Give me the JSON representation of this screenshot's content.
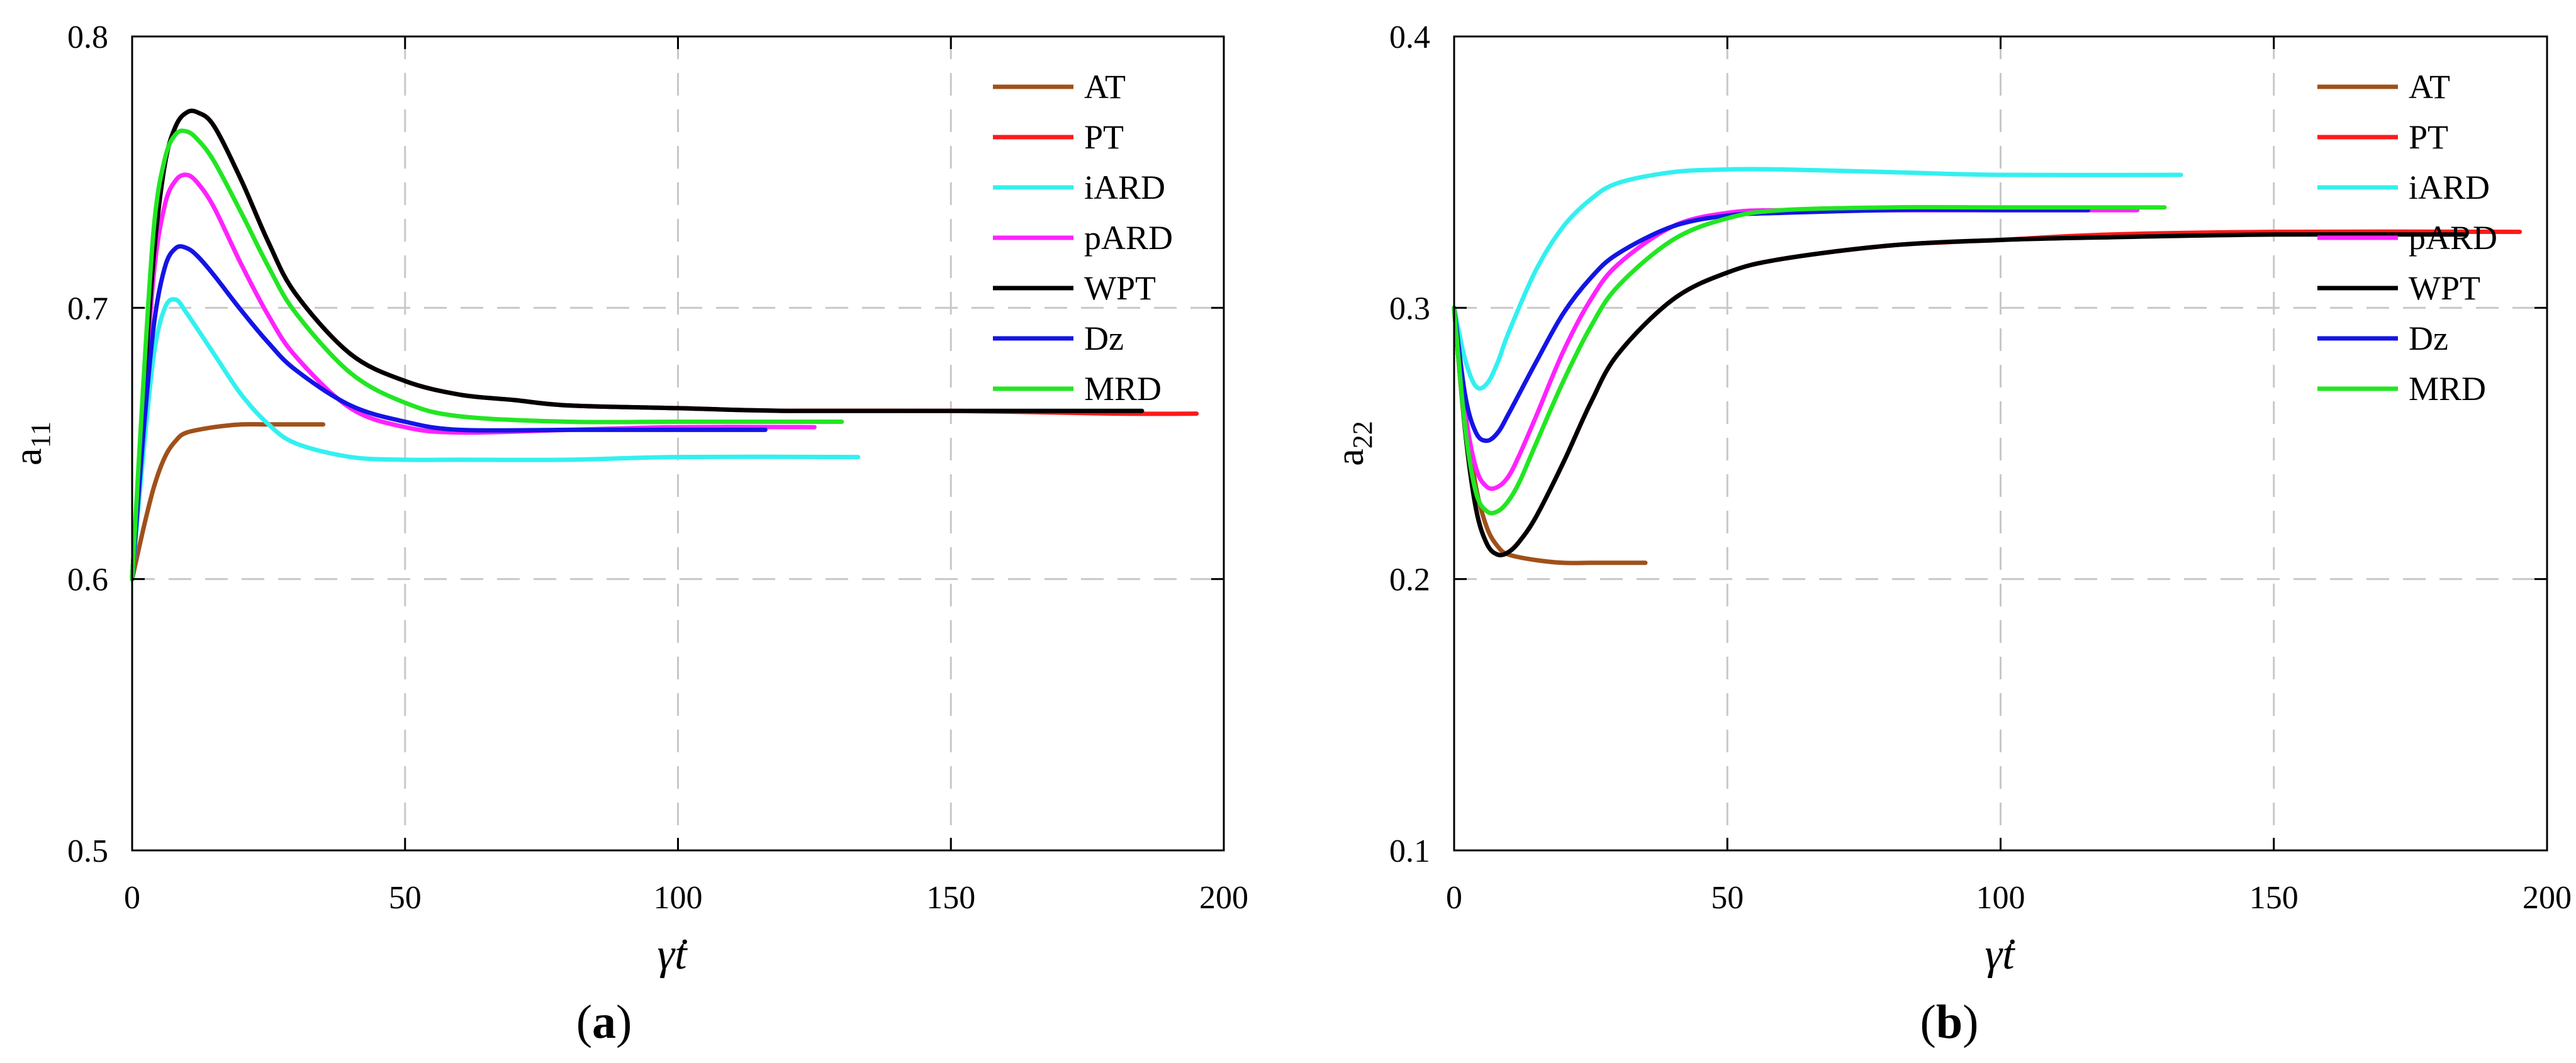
{
  "colors": {
    "AT": "#a0501a",
    "PT": "#ff1a1a",
    "iARD": "#33f0f0",
    "pARD": "#ff22ff",
    "WPT": "#000000",
    "Dz": "#1414e6",
    "MRD": "#22e622"
  },
  "chart_data": [
    {
      "type": "line",
      "panel": "a",
      "panel_label": [
        "(",
        "a",
        ")"
      ],
      "xlabel": "γ̇t",
      "ylabel": "a",
      "ylabel_sub": "11",
      "xlim": [
        0,
        200
      ],
      "ylim": [
        0.5,
        0.8
      ],
      "xticks": [
        0,
        50,
        100,
        150,
        200
      ],
      "yticks": [
        0.5,
        0.6,
        0.7,
        0.8
      ],
      "xtick_labels": [
        "0",
        "50",
        "100",
        "150",
        "200"
      ],
      "ytick_labels": [
        "0.5",
        "0.6",
        "0.7",
        "0.8"
      ],
      "grid": true,
      "legend_position": "top-right",
      "series": [
        {
          "name": "AT",
          "x": [
            0,
            2,
            4,
            6,
            8,
            10,
            15,
            20,
            25,
            30,
            35
          ],
          "y": [
            0.6,
            0.618,
            0.634,
            0.645,
            0.651,
            0.654,
            0.656,
            0.657,
            0.657,
            0.657,
            0.657
          ]
        },
        {
          "name": "PT",
          "x": [
            0,
            2,
            4,
            6,
            8,
            10,
            12,
            15,
            20,
            25,
            30,
            40,
            50,
            60,
            70,
            80,
            100,
            120,
            150,
            180,
            195
          ],
          "y": [
            0.6,
            0.665,
            0.72,
            0.753,
            0.767,
            0.772,
            0.772,
            0.767,
            0.747,
            0.724,
            0.705,
            0.683,
            0.673,
            0.668,
            0.666,
            0.664,
            0.663,
            0.662,
            0.662,
            0.661,
            0.661
          ]
        },
        {
          "name": "iARD",
          "x": [
            0,
            2,
            4,
            6,
            8,
            10,
            15,
            20,
            25,
            30,
            40,
            50,
            60,
            80,
            100,
            133
          ],
          "y": [
            0.6,
            0.645,
            0.683,
            0.7,
            0.703,
            0.698,
            0.683,
            0.668,
            0.657,
            0.65,
            0.645,
            0.644,
            0.644,
            0.644,
            0.645,
            0.645
          ]
        },
        {
          "name": "pARD",
          "x": [
            0,
            2,
            4,
            6,
            8,
            10,
            12,
            15,
            20,
            25,
            30,
            40,
            50,
            60,
            80,
            100,
            125
          ],
          "y": [
            0.6,
            0.66,
            0.713,
            0.738,
            0.747,
            0.749,
            0.746,
            0.737,
            0.716,
            0.697,
            0.682,
            0.663,
            0.656,
            0.654,
            0.655,
            0.656,
            0.656
          ]
        },
        {
          "name": "WPT",
          "x": [
            0,
            2,
            4,
            6,
            8,
            10,
            12,
            15,
            20,
            25,
            30,
            40,
            50,
            60,
            70,
            80,
            100,
            120,
            150,
            185
          ],
          "y": [
            0.6,
            0.665,
            0.72,
            0.753,
            0.767,
            0.772,
            0.772,
            0.767,
            0.747,
            0.724,
            0.705,
            0.683,
            0.673,
            0.668,
            0.666,
            0.664,
            0.663,
            0.662,
            0.662,
            0.662
          ]
        },
        {
          "name": "Dz",
          "x": [
            0,
            2,
            4,
            6,
            8,
            10,
            12,
            15,
            20,
            25,
            30,
            40,
            50,
            60,
            80,
            100,
            116
          ],
          "y": [
            0.6,
            0.652,
            0.694,
            0.715,
            0.722,
            0.722,
            0.719,
            0.712,
            0.699,
            0.687,
            0.677,
            0.664,
            0.658,
            0.655,
            0.655,
            0.655,
            0.655
          ]
        },
        {
          "name": "MRD",
          "x": [
            0,
            2,
            4,
            6,
            8,
            10,
            12,
            15,
            20,
            25,
            30,
            40,
            50,
            60,
            80,
            100,
            130
          ],
          "y": [
            0.6,
            0.67,
            0.73,
            0.755,
            0.764,
            0.765,
            0.762,
            0.754,
            0.735,
            0.715,
            0.698,
            0.676,
            0.665,
            0.66,
            0.658,
            0.658,
            0.658
          ]
        }
      ]
    },
    {
      "type": "line",
      "panel": "b",
      "panel_label": [
        "(",
        "b",
        ")"
      ],
      "xlabel": "γ̇t",
      "ylabel": "a",
      "ylabel_sub": "22",
      "xlim": [
        0,
        200
      ],
      "ylim": [
        0.1,
        0.4
      ],
      "xticks": [
        0,
        50,
        100,
        150,
        200
      ],
      "yticks": [
        0.1,
        0.2,
        0.3,
        0.4
      ],
      "xtick_labels": [
        "0",
        "50",
        "100",
        "150",
        "200"
      ],
      "ytick_labels": [
        "0.1",
        "0.2",
        "0.3",
        "0.4"
      ],
      "grid": true,
      "legend_position": "top-right",
      "series": [
        {
          "name": "AT",
          "x": [
            0,
            2,
            4,
            6,
            8,
            10,
            15,
            20,
            25,
            30,
            35
          ],
          "y": [
            0.3,
            0.262,
            0.234,
            0.219,
            0.212,
            0.209,
            0.207,
            0.206,
            0.206,
            0.206,
            0.206
          ]
        },
        {
          "name": "PT",
          "x": [
            0,
            2,
            4,
            6,
            8,
            10,
            12,
            15,
            20,
            25,
            30,
            40,
            50,
            60,
            80,
            100,
            120,
            150,
            195
          ],
          "y": [
            0.3,
            0.255,
            0.226,
            0.213,
            0.209,
            0.21,
            0.214,
            0.223,
            0.243,
            0.265,
            0.283,
            0.303,
            0.313,
            0.318,
            0.323,
            0.325,
            0.327,
            0.328,
            0.328
          ]
        },
        {
          "name": "iARD",
          "x": [
            0,
            2,
            4,
            6,
            8,
            10,
            15,
            20,
            25,
            30,
            40,
            50,
            60,
            80,
            100,
            133
          ],
          "y": [
            0.3,
            0.281,
            0.271,
            0.272,
            0.28,
            0.291,
            0.314,
            0.33,
            0.34,
            0.346,
            0.35,
            0.351,
            0.351,
            0.35,
            0.349,
            0.349
          ]
        },
        {
          "name": "pARD",
          "x": [
            0,
            2,
            4,
            6,
            8,
            10,
            12,
            15,
            20,
            25,
            30,
            40,
            50,
            60,
            80,
            100,
            125
          ],
          "y": [
            0.3,
            0.262,
            0.241,
            0.234,
            0.234,
            0.238,
            0.246,
            0.26,
            0.284,
            0.303,
            0.316,
            0.33,
            0.335,
            0.336,
            0.336,
            0.336,
            0.336
          ]
        },
        {
          "name": "WPT",
          "x": [
            0,
            2,
            4,
            6,
            8,
            10,
            12,
            15,
            20,
            25,
            30,
            40,
            50,
            60,
            80,
            100,
            120,
            150,
            185
          ],
          "y": [
            0.3,
            0.255,
            0.226,
            0.213,
            0.209,
            0.21,
            0.214,
            0.223,
            0.243,
            0.265,
            0.283,
            0.303,
            0.313,
            0.318,
            0.323,
            0.325,
            0.326,
            0.327,
            0.327
          ]
        },
        {
          "name": "Dz",
          "x": [
            0,
            2,
            4,
            6,
            8,
            10,
            15,
            20,
            25,
            30,
            40,
            50,
            60,
            80,
            100,
            116
          ],
          "y": [
            0.3,
            0.268,
            0.254,
            0.251,
            0.254,
            0.261,
            0.28,
            0.298,
            0.311,
            0.32,
            0.33,
            0.334,
            0.335,
            0.336,
            0.336,
            0.336
          ]
        },
        {
          "name": "MRD",
          "x": [
            0,
            2,
            4,
            6,
            8,
            10,
            12,
            15,
            20,
            25,
            30,
            40,
            50,
            60,
            80,
            100,
            130
          ],
          "y": [
            0.3,
            0.256,
            0.232,
            0.225,
            0.225,
            0.229,
            0.236,
            0.25,
            0.273,
            0.293,
            0.308,
            0.325,
            0.333,
            0.336,
            0.337,
            0.337,
            0.337
          ]
        }
      ]
    }
  ]
}
